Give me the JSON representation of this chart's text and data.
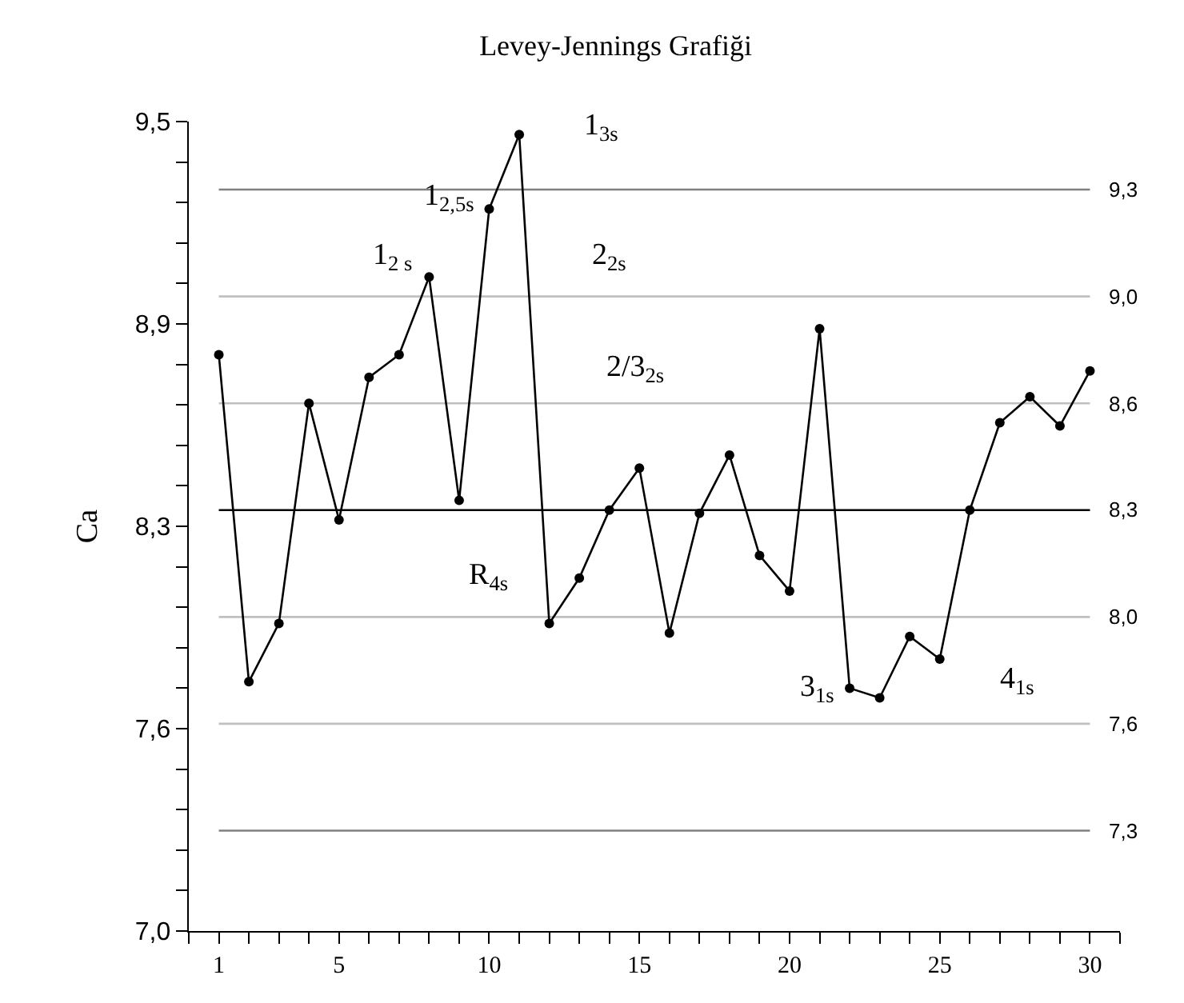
{
  "chart_data": {
    "type": "line",
    "title": "Levey-Jennings Grafiği",
    "ylabel": "Ca",
    "x": [
      1,
      2,
      3,
      4,
      5,
      6,
      7,
      8,
      9,
      10,
      11,
      12,
      13,
      14,
      15,
      16,
      17,
      18,
      19,
      20,
      21,
      22,
      23,
      24,
      25,
      26,
      27,
      28,
      29,
      30
    ],
    "series": [
      {
        "color": "#000000",
        "values": [
          8.78,
          7.77,
          7.95,
          8.63,
          8.27,
          8.71,
          8.78,
          9.02,
          8.33,
          9.23,
          9.46,
          7.95,
          8.09,
          8.3,
          8.43,
          7.92,
          8.29,
          8.47,
          8.16,
          8.05,
          8.86,
          7.75,
          7.72,
          7.91,
          7.84,
          8.3,
          8.57,
          8.65,
          8.56,
          8.73
        ]
      }
    ],
    "marker": "circle",
    "line_style": "solid",
    "xlim": [
      0,
      31
    ],
    "xticks": [
      {
        "value": 0,
        "label": null
      },
      1,
      {
        "value": 2,
        "label": null
      },
      {
        "value": 3,
        "label": null
      },
      {
        "value": 4,
        "label": null
      },
      5,
      {
        "value": 6,
        "label": null
      },
      {
        "value": 7,
        "label": null
      },
      {
        "value": 8,
        "label": null
      },
      {
        "value": 9,
        "label": null
      },
      10,
      {
        "value": 11,
        "label": null
      },
      {
        "value": 12,
        "label": null
      },
      {
        "value": 13,
        "label": null
      },
      {
        "value": 14,
        "label": null
      },
      15,
      {
        "value": 16,
        "label": null
      },
      {
        "value": 17,
        "label": null
      },
      {
        "value": 18,
        "label": null
      },
      {
        "value": 19,
        "label": null
      },
      20,
      {
        "value": 21,
        "label": null
      },
      {
        "value": 22,
        "label": null
      },
      {
        "value": 23,
        "label": null
      },
      {
        "value": 24,
        "label": null
      },
      25,
      {
        "value": 26,
        "label": null
      },
      {
        "value": 27,
        "label": null
      },
      {
        "value": 28,
        "label": null
      },
      {
        "value": 29,
        "label": null
      },
      30,
      {
        "value": 31,
        "label": null
      }
    ],
    "ylim": [
      7.0,
      9.5
    ],
    "yticks": [
      {
        "value": 7.0,
        "label": "7,0"
      },
      {
        "value": 7.125,
        "label": null
      },
      {
        "value": 7.25,
        "label": null
      },
      {
        "value": 7.375,
        "label": null
      },
      {
        "value": 7.5,
        "label": null
      },
      {
        "value": 7.625,
        "label": "7,6"
      },
      {
        "value": 7.75,
        "label": null
      },
      {
        "value": 7.875,
        "label": null
      },
      {
        "value": 8.0,
        "label": null
      },
      {
        "value": 8.125,
        "label": null
      },
      {
        "value": 8.25,
        "label": "8,3"
      },
      {
        "value": 8.375,
        "label": null
      },
      {
        "value": 8.5,
        "label": null
      },
      {
        "value": 8.625,
        "label": null
      },
      {
        "value": 8.75,
        "label": null
      },
      {
        "value": 8.875,
        "label": "8,9"
      },
      {
        "value": 9.0,
        "label": null
      },
      {
        "value": 9.125,
        "label": null
      },
      {
        "value": 9.25,
        "label": null
      },
      {
        "value": 9.375,
        "label": null
      },
      {
        "value": 9.5,
        "label": "9,5"
      }
    ],
    "ref_lines": [
      {
        "axis": "y",
        "value": 9.29,
        "label": "9,3",
        "color": "#808080"
      },
      {
        "axis": "y",
        "value": 8.96,
        "label": "9,0",
        "color": "#c0c0c0"
      },
      {
        "axis": "y",
        "value": 8.63,
        "label": "8,6",
        "color": "#c0c0c0"
      },
      {
        "axis": "y",
        "value": 8.3,
        "label": "8,3",
        "color": "#000000"
      },
      {
        "axis": "y",
        "value": 7.97,
        "label": "8,0",
        "color": "#c0c0c0"
      },
      {
        "axis": "y",
        "value": 7.64,
        "label": "7,6",
        "color": "#c0c0c0"
      },
      {
        "axis": "y",
        "value": 7.31,
        "label": "7,3",
        "color": "#808080"
      }
    ],
    "annotations": [
      "1$_{2,5s}$",
      "1$_{3s}$",
      "1$_{2 s}$",
      "2$_{2s}$",
      "2/3$_{2s}$",
      "R$_{4s}$",
      "3$_{1s}$",
      "4$_{1s}$"
    ]
  }
}
